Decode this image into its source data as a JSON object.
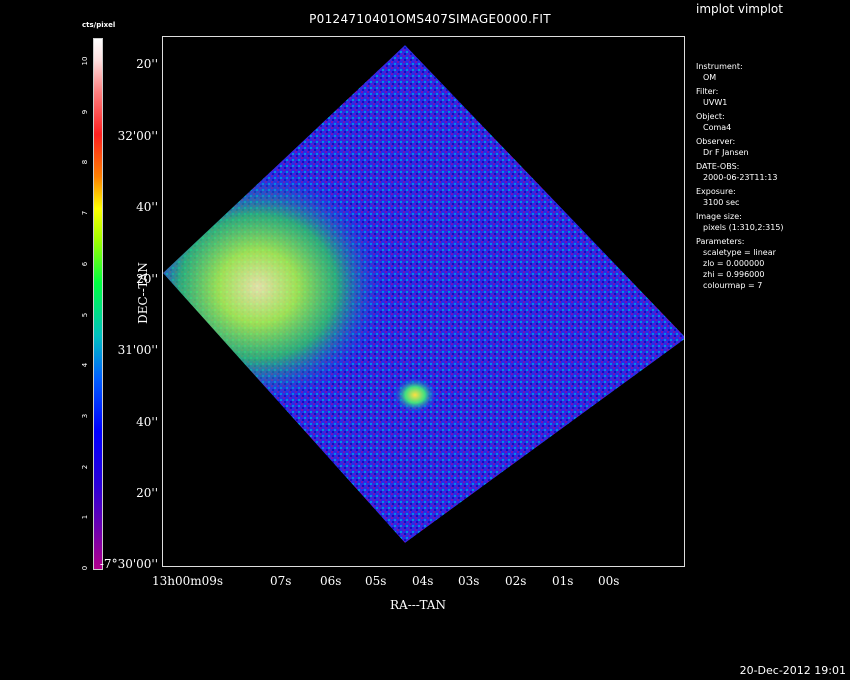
{
  "app_title": "implot vimplot",
  "plot_title": "P0124710401OMS407SIMAGE0000.FIT",
  "footer_date": "20-Dec-2012 19:01",
  "colorbar": {
    "label": "cts/pixel",
    "ticks": [
      "0",
      "1",
      "2",
      "3",
      "4",
      "5",
      "6",
      "7",
      "8",
      "9",
      "10"
    ]
  },
  "axes": {
    "xlabel": "RA---TAN",
    "ylabel": "DEC--TAN",
    "y_ticks": [
      "20''",
      "32'00''",
      "40''",
      "20''",
      "31'00''",
      "40''",
      "20''",
      "-7°30'00''"
    ],
    "x_ticks": [
      "13h00m09s",
      "07s",
      "06s",
      "05s",
      "04s",
      "03s",
      "02s",
      "01s",
      "00s"
    ]
  },
  "info": [
    {
      "key": "Instrument:",
      "value": "OM"
    },
    {
      "key": "Filter:",
      "value": "UVW1"
    },
    {
      "key": "Object:",
      "value": "Coma4"
    },
    {
      "key": "Observer:",
      "value": "Dr F Jansen"
    },
    {
      "key": "DATE-OBS:",
      "value": "2000-06-23T11:13"
    },
    {
      "key": "Exposure:",
      "value": "3100 sec"
    },
    {
      "key": "Image size:",
      "value": "pixels (1:310,2:315)"
    },
    {
      "key": "Parameters:",
      "value": "scaletype = linear"
    },
    {
      "key": "",
      "value": "zlo = 0.000000"
    },
    {
      "key": "",
      "value": "zhi = 0.996000"
    },
    {
      "key": "",
      "value": "colourmap = 7"
    }
  ],
  "colors": {
    "background": "#000000",
    "image_base": "#2020e0",
    "bright_region": "#40e060",
    "source": "#ffd000"
  }
}
